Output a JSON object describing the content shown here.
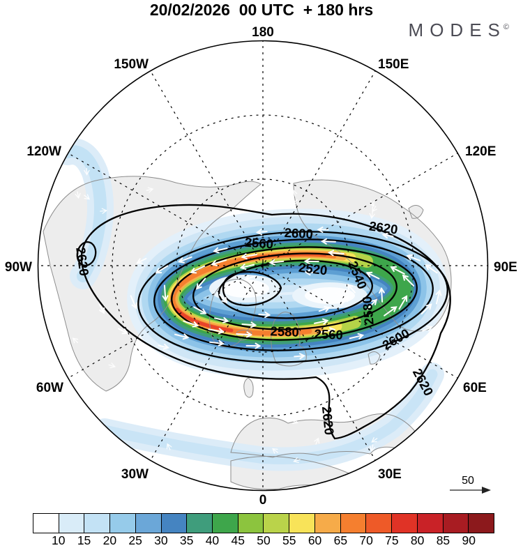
{
  "title": "20/02/2026  00 UTC  + 180 hrs",
  "logo": {
    "text": "MODES",
    "mark": "©"
  },
  "map": {
    "longitude_labels": [
      "180",
      "150W",
      "120W",
      "90W",
      "60W",
      "30W",
      "0",
      "30E",
      "60E",
      "90E",
      "120E",
      "150E"
    ],
    "contour_labels": [
      "2620",
      "2620",
      "2620",
      "2620",
      "2600",
      "2600",
      "2560",
      "2540",
      "2520",
      "2580",
      "2560",
      "2580"
    ]
  },
  "reference_vector": {
    "label": "50"
  },
  "colorbar": {
    "tick_labels": [
      "10",
      "15",
      "20",
      "25",
      "30",
      "35",
      "40",
      "45",
      "50",
      "55",
      "60",
      "65",
      "70",
      "75",
      "80",
      "85",
      "90"
    ],
    "colors": [
      "#ffffff",
      "#d9ecf8",
      "#c3e2f5",
      "#96cbea",
      "#6ba7d8",
      "#4584c1",
      "#3f9d7c",
      "#3ea64b",
      "#8cc43e",
      "#bad34a",
      "#f8e359",
      "#f6ab49",
      "#f57f2f",
      "#ee5a28",
      "#e03326",
      "#c92227",
      "#a81c22",
      "#8c191c"
    ]
  },
  "chart_data": {
    "type": "heatmap",
    "title": "20/02/2026 00 UTC + 180 hrs",
    "projection": "Northern Hemisphere polar stereographic, 180 at top, 0 at bottom",
    "longitude_labels": [
      "180",
      "150W",
      "120W",
      "90W",
      "60W",
      "30W",
      "0",
      "30E",
      "60E",
      "90E",
      "120E",
      "150E"
    ],
    "shaded_field": {
      "name": "wind speed",
      "levels": [
        10,
        15,
        20,
        25,
        30,
        35,
        40,
        45,
        50,
        55,
        60,
        65,
        70,
        75,
        80,
        85,
        90
      ],
      "colors": [
        "#ffffff",
        "#d9ecf8",
        "#c3e2f5",
        "#96cbea",
        "#6ba7d8",
        "#4584c1",
        "#3f9d7c",
        "#3ea64b",
        "#8cc43e",
        "#bad34a",
        "#f8e359",
        "#f6ab49",
        "#f57f2f",
        "#ee5a28",
        "#e03326",
        "#c92227",
        "#a81c22",
        "#8c191c"
      ]
    },
    "contour_field": {
      "labeled_levels": [
        2520,
        2540,
        2560,
        2580,
        2600,
        2620
      ],
      "contour_interval": 20,
      "visible_label_instances": [
        "2620",
        "2620",
        "2620",
        "2620",
        "2600",
        "2600",
        "2560",
        "2540",
        "2520",
        "2580",
        "2560",
        "2580"
      ],
      "pattern": "closed cyclonic polar vortex elongated east-west, ring of strong winds (orange/red core on west and north flanks), weak winds at center; separate small closed 2620 contour near 90W and a 2620 tongue extending south over the Mediterranean"
    },
    "vectors": {
      "style": "white arrows circulating counterclockwise around the vortex",
      "reference_value": 50
    },
    "legend_position": "bottom colorbar",
    "grid": "dashed latitude circles and 30-degree meridians"
  }
}
